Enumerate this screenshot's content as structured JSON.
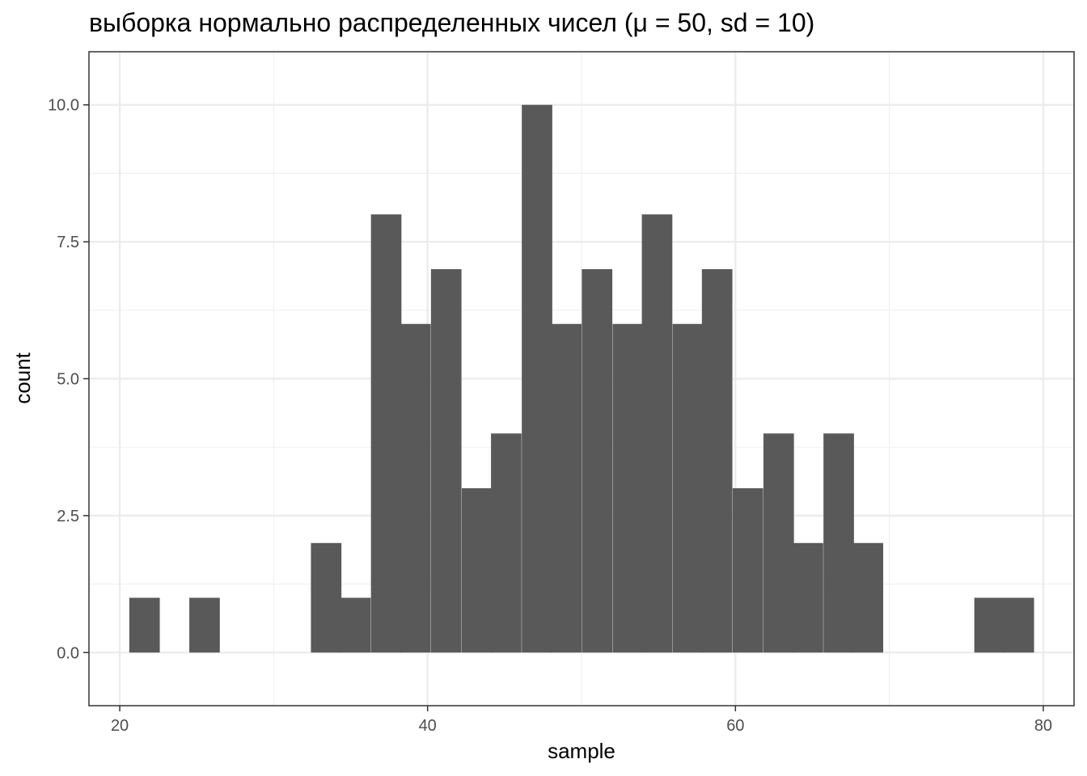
{
  "chart_data": {
    "type": "bar",
    "title": "выборка нормально распределенных чисел (μ = 50, sd = 10)",
    "xlabel": "sample",
    "ylabel": "count",
    "xlim": [
      18,
      82
    ],
    "ylim": [
      -0.97,
      10.97
    ],
    "x_ticks": [
      20,
      40,
      60,
      80
    ],
    "x_tick_labels": [
      "20",
      "40",
      "60",
      "80"
    ],
    "y_ticks": [
      0,
      2.5,
      5,
      7.5,
      10
    ],
    "y_tick_labels": [
      "0.0",
      "2.5",
      "5.0",
      "7.5",
      "10.0"
    ],
    "grid": true,
    "bar_color": "#595959",
    "bin_width": 1.96,
    "bins": [
      {
        "x": 21.6,
        "count": 1
      },
      {
        "x": 23.6,
        "count": 0
      },
      {
        "x": 25.5,
        "count": 1
      },
      {
        "x": 27.5,
        "count": 0
      },
      {
        "x": 29.4,
        "count": 0
      },
      {
        "x": 31.4,
        "count": 0
      },
      {
        "x": 33.4,
        "count": 2
      },
      {
        "x": 35.3,
        "count": 1
      },
      {
        "x": 37.3,
        "count": 8
      },
      {
        "x": 39.2,
        "count": 6
      },
      {
        "x": 41.2,
        "count": 7
      },
      {
        "x": 43.2,
        "count": 3
      },
      {
        "x": 45.1,
        "count": 4
      },
      {
        "x": 47.1,
        "count": 10
      },
      {
        "x": 49.0,
        "count": 6
      },
      {
        "x": 51.0,
        "count": 7
      },
      {
        "x": 53.0,
        "count": 6
      },
      {
        "x": 54.9,
        "count": 8
      },
      {
        "x": 56.9,
        "count": 6
      },
      {
        "x": 58.8,
        "count": 7
      },
      {
        "x": 60.8,
        "count": 3
      },
      {
        "x": 62.8,
        "count": 4
      },
      {
        "x": 64.7,
        "count": 2
      },
      {
        "x": 66.7,
        "count": 4
      },
      {
        "x": 68.6,
        "count": 2
      },
      {
        "x": 70.6,
        "count": 0
      },
      {
        "x": 72.6,
        "count": 0
      },
      {
        "x": 74.5,
        "count": 0
      },
      {
        "x": 76.5,
        "count": 1
      },
      {
        "x": 78.4,
        "count": 1
      }
    ]
  }
}
